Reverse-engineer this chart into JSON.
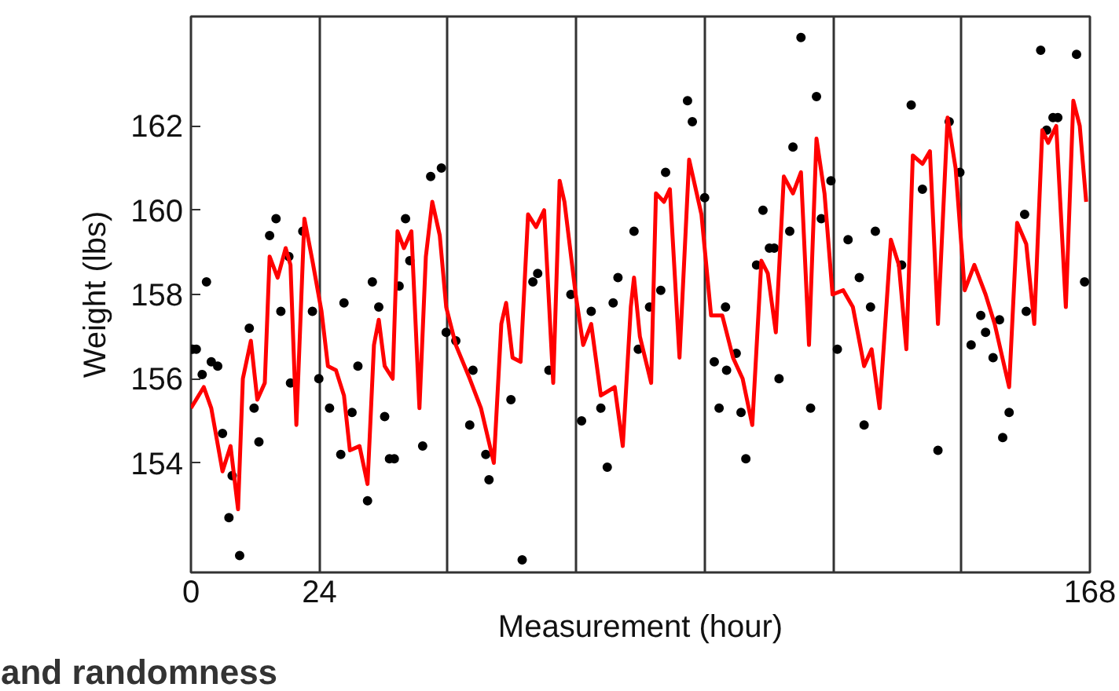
{
  "chart_data": {
    "type": "scatter",
    "xlabel": "Measurement (hour)",
    "ylabel": "Weight (lbs)",
    "annotations": [
      "and randomness"
    ],
    "xlim": [
      0,
      168
    ],
    "ylim": [
      151.4,
      164.6
    ],
    "xticks": [
      0,
      24,
      {
        "value": 48,
        "label": null
      },
      {
        "value": 72,
        "label": null
      },
      {
        "value": 96,
        "label": null
      },
      {
        "value": 120,
        "label": null
      },
      {
        "value": 144,
        "label": null
      },
      168
    ],
    "yticks": [
      154,
      156,
      158,
      160,
      162
    ],
    "grid": "x",
    "series": [
      {
        "color": "#000000",
        "marker": "circle",
        "x": [
          0.3,
          1.0,
          2.1,
          2.9,
          3.8,
          5.0,
          5.9,
          7.1,
          7.7,
          9.1,
          10.9,
          11.8,
          12.7,
          14.7,
          15.9,
          16.8,
          18.3,
          18.6,
          20.9,
          22.7,
          23.9,
          25.9,
          28.0,
          28.6,
          30.1,
          31.2,
          33.0,
          33.9,
          35.1,
          36.2,
          37.1,
          38.0,
          38.9,
          40.1,
          40.9,
          43.3,
          44.8,
          46.8,
          47.7,
          49.5,
          52.1,
          52.7,
          55.1,
          55.7,
          59.8,
          61.9,
          63.9,
          64.8,
          66.9,
          71.0,
          73.0,
          74.8,
          76.6,
          77.8,
          78.9,
          79.8,
          82.8,
          83.6,
          85.7,
          87.8,
          88.7,
          92.8,
          93.7,
          96.0,
          97.8,
          98.7,
          99.9,
          100.1,
          101.9,
          102.8,
          103.7,
          105.7,
          106.9,
          108.1,
          109.0,
          109.9,
          111.9,
          112.5,
          114.0,
          115.8,
          116.9,
          117.8,
          119.6,
          120.8,
          122.8,
          124.9,
          125.8,
          127.0,
          127.9,
          132.8,
          134.6,
          136.7,
          139.6,
          141.7,
          143.7,
          145.8,
          147.6,
          148.5,
          149.9,
          151.1,
          151.7,
          152.9,
          155.8,
          156.1,
          158.8,
          159.9,
          161.1,
          162.0,
          165.5,
          167.0
        ],
        "values": [
          156.7,
          156.7,
          156.1,
          158.3,
          156.4,
          156.3,
          154.7,
          152.7,
          153.7,
          151.8,
          157.2,
          155.3,
          154.5,
          159.4,
          159.8,
          157.6,
          158.9,
          155.9,
          159.5,
          157.6,
          156.0,
          155.3,
          154.2,
          157.8,
          155.2,
          156.3,
          153.1,
          158.3,
          157.7,
          155.1,
          154.1,
          154.1,
          158.2,
          159.8,
          158.8,
          154.4,
          160.8,
          161.0,
          157.1,
          156.9,
          154.9,
          156.2,
          154.2,
          153.6,
          155.5,
          151.7,
          158.3,
          158.5,
          156.2,
          158.0,
          155.0,
          157.6,
          155.3,
          153.9,
          157.8,
          158.4,
          159.5,
          156.7,
          157.7,
          158.1,
          160.9,
          162.6,
          162.1,
          160.3,
          156.4,
          155.3,
          157.7,
          156.2,
          156.6,
          155.2,
          154.1,
          158.7,
          160.0,
          159.1,
          159.1,
          156.0,
          159.5,
          161.5,
          164.1,
          155.3,
          162.7,
          159.8,
          160.7,
          156.7,
          159.3,
          158.4,
          154.9,
          157.7,
          159.5,
          158.7,
          162.5,
          160.5,
          154.3,
          162.1,
          160.9,
          156.8,
          157.5,
          157.1,
          156.5,
          157.4,
          154.6,
          155.2,
          159.9,
          157.6,
          163.8,
          161.9,
          162.2,
          162.2,
          163.7,
          158.3
        ]
      },
      {
        "type": "line",
        "color": "#ff0000",
        "marker": "none",
        "line_style": "solid",
        "x": [
          0,
          2.4,
          3.8,
          5.9,
          7.4,
          8.8,
          9.7,
          11.2,
          12.4,
          13.8,
          14.7,
          16.2,
          17.7,
          18.6,
          19.7,
          21.2,
          22.7,
          24.4,
          25.6,
          27.1,
          28.6,
          29.7,
          31.5,
          33.0,
          34.2,
          35.1,
          36.2,
          37.7,
          38.6,
          39.8,
          41.2,
          42.7,
          43.9,
          45.1,
          46.5,
          47.7,
          49.5,
          52.1,
          54.2,
          56.6,
          58.0,
          58.9,
          60.1,
          61.6,
          63.0,
          64.5,
          66.0,
          67.7,
          68.9,
          69.8,
          71.9,
          73.3,
          74.8,
          76.6,
          79.2,
          80.7,
          82.2,
          82.8,
          83.9,
          86.0,
          86.9,
          88.4,
          89.5,
          91.3,
          93.1,
          95.4,
          97.2,
          99.3,
          101.3,
          103.1,
          104.9,
          106.6,
          107.8,
          109.3,
          110.8,
          112.5,
          114.0,
          115.5,
          116.9,
          118.4,
          119.9,
          121.9,
          123.7,
          125.8,
          127.2,
          128.7,
          130.8,
          132.3,
          133.7,
          134.9,
          136.7,
          138.1,
          139.6,
          141.4,
          142.9,
          144.6,
          146.4,
          148.5,
          150.2,
          152.9,
          154.4,
          156.1,
          157.6,
          159.1,
          160.2,
          161.7,
          163.5,
          164.9,
          166.1,
          167.3
        ],
        "values": [
          155.3,
          155.8,
          155.3,
          153.8,
          154.4,
          152.9,
          156.0,
          156.9,
          155.5,
          155.9,
          158.9,
          158.4,
          159.1,
          158.7,
          154.9,
          159.8,
          158.8,
          157.6,
          156.3,
          156.2,
          155.6,
          154.3,
          154.4,
          153.5,
          156.8,
          157.4,
          156.3,
          156.0,
          159.5,
          159.1,
          159.5,
          155.3,
          158.9,
          160.2,
          159.4,
          157.7,
          156.8,
          156.0,
          155.3,
          154.0,
          157.3,
          157.8,
          156.5,
          156.4,
          159.9,
          159.6,
          160.0,
          155.9,
          160.7,
          160.2,
          158.0,
          156.8,
          157.3,
          155.6,
          155.8,
          154.4,
          157.7,
          158.4,
          157.0,
          155.9,
          160.4,
          160.2,
          160.5,
          156.5,
          161.2,
          159.9,
          157.5,
          157.5,
          156.5,
          156.0,
          154.9,
          158.8,
          158.5,
          157.1,
          160.8,
          160.4,
          160.9,
          156.8,
          161.7,
          160.4,
          158.0,
          158.1,
          157.7,
          156.3,
          156.7,
          155.3,
          159.3,
          158.7,
          156.7,
          161.3,
          161.1,
          161.4,
          157.3,
          162.2,
          161.0,
          158.1,
          158.7,
          158.0,
          157.3,
          155.8,
          159.7,
          159.2,
          157.3,
          161.9,
          161.6,
          162.0,
          157.7,
          162.6,
          162.0,
          160.2
        ]
      }
    ]
  }
}
